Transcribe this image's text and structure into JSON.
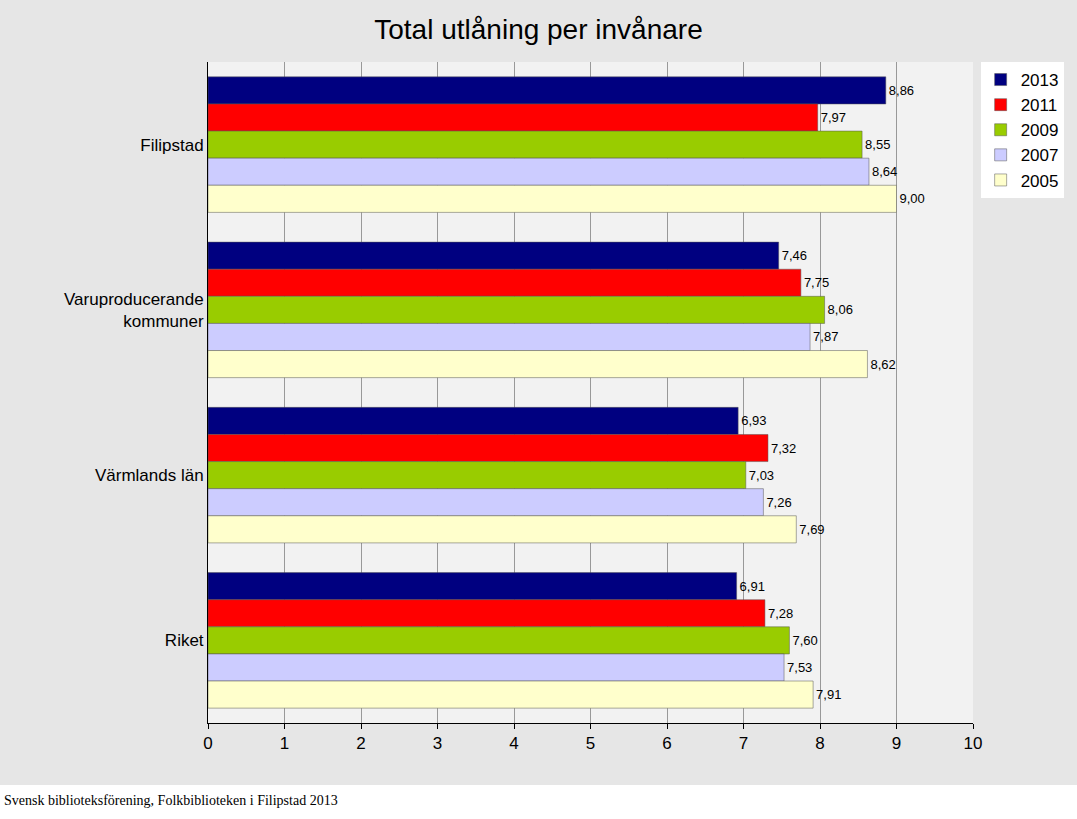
{
  "chart_data": {
    "type": "bar",
    "orientation": "horizontal",
    "title": "Total utlåning per invånare",
    "source": "Svensk biblioteksförening, Folkbiblioteken i Filipstad 2013",
    "categories": [
      "Filipstad",
      "Varuproducerande\nkommuner",
      "Värmlands län",
      "Riket"
    ],
    "series": [
      {
        "name": "2013",
        "color": "#000080",
        "values": [
          8.86,
          7.46,
          6.93,
          6.91
        ],
        "value_labels": [
          "8,86",
          "7,46",
          "6,93",
          "6,91"
        ]
      },
      {
        "name": "2011",
        "color": "#ff0000",
        "values": [
          7.97,
          7.75,
          7.32,
          7.28
        ],
        "value_labels": [
          "7,97",
          "7,75",
          "7,32",
          "7,28"
        ]
      },
      {
        "name": "2009",
        "color": "#99cc00",
        "values": [
          8.55,
          8.06,
          7.03,
          7.6
        ],
        "value_labels": [
          "8,55",
          "8,06",
          "7,03",
          "7,60"
        ]
      },
      {
        "name": "2007",
        "color": "#ccccff",
        "values": [
          8.64,
          7.87,
          7.26,
          7.53
        ],
        "value_labels": [
          "8,64",
          "7,87",
          "7,26",
          "7,53"
        ]
      },
      {
        "name": "2005",
        "color": "#ffffcc",
        "values": [
          9.0,
          8.62,
          7.69,
          7.91
        ],
        "value_labels": [
          "9,00",
          "8,62",
          "7,69",
          "7,91"
        ]
      }
    ],
    "xlim": [
      0,
      10
    ],
    "xticks": [
      0,
      1,
      2,
      3,
      4,
      5,
      6,
      7,
      8,
      9,
      10
    ],
    "grid": true,
    "legend": "top-right",
    "data_labels": true
  }
}
